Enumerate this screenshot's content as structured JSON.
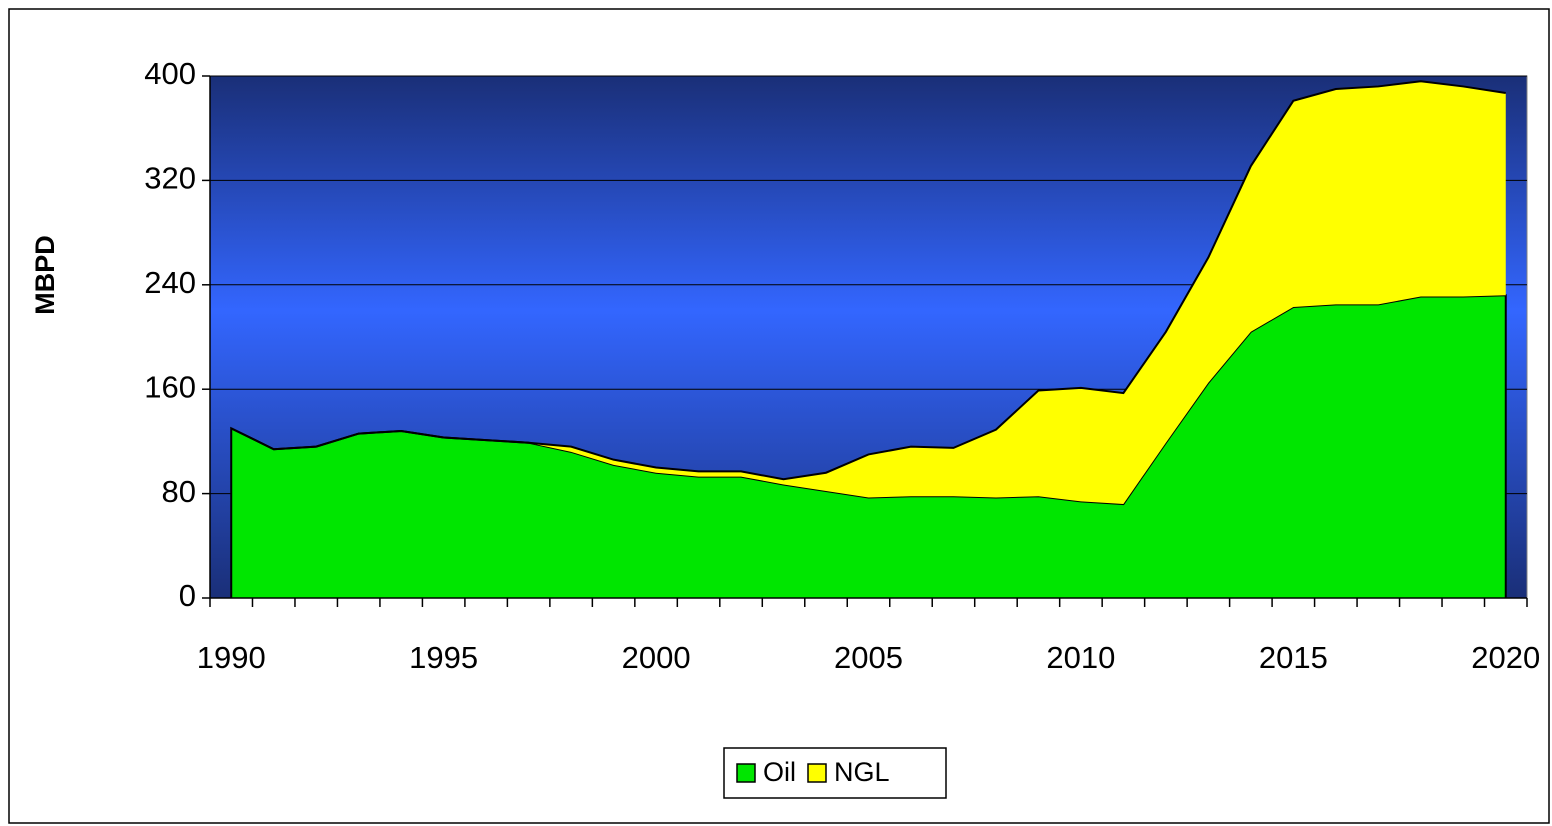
{
  "chart_data": {
    "type": "stacked_area",
    "y_label": "MBPD",
    "categories": [
      "1990",
      null,
      null,
      null,
      null,
      "1995",
      null,
      null,
      null,
      null,
      "2000",
      null,
      null,
      null,
      null,
      "2005",
      null,
      null,
      null,
      null,
      "2010",
      null,
      null,
      null,
      null,
      "2015",
      null,
      null,
      null,
      null,
      "2020"
    ],
    "series": [
      {
        "name": "Oil",
        "color": "#00e600",
        "values": [
          130,
          114,
          116,
          126,
          128,
          123,
          121,
          119,
          112,
          102,
          96,
          93,
          93,
          87,
          82,
          77,
          78,
          78,
          77,
          78,
          74,
          72,
          119,
          165,
          204,
          223,
          225,
          225,
          231,
          231,
          232
        ]
      },
      {
        "name": "NGL",
        "color": "#ffff00",
        "values": [
          0,
          0,
          0,
          0,
          0,
          0,
          0,
          0,
          4,
          4,
          4,
          4,
          4,
          4,
          14,
          33,
          38,
          37,
          52,
          81,
          87,
          85,
          85,
          96,
          127,
          158,
          165,
          167,
          165,
          161,
          155
        ]
      }
    ],
    "ylim": [
      0,
      400
    ],
    "yticks": [
      0,
      80,
      160,
      240,
      320,
      400
    ],
    "grid": true,
    "legend": "bottom"
  }
}
